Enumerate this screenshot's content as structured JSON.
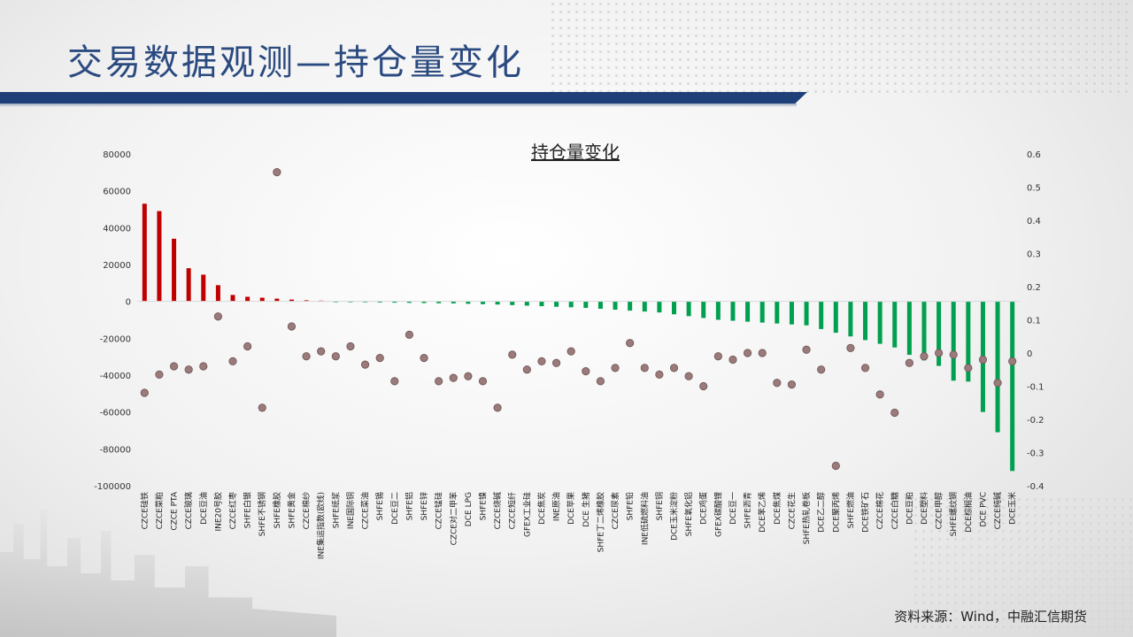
{
  "page": {
    "title": "交易数据观测—持仓量变化",
    "source": "资料来源：Wind，中融汇信期货"
  },
  "colors": {
    "title": "#2b4a80",
    "header_bar": "#1f3f78",
    "bar_positive": "#c00000",
    "bar_negative": "#00a050",
    "dot": "#9a7a7a"
  },
  "chart_data": {
    "type": "bar",
    "title": "持仓量变化",
    "xlabel": "",
    "ylabel": "",
    "ylim": [
      -100000,
      80000
    ],
    "y_ticks": [
      "80000",
      "60000",
      "40000",
      "20000",
      "0",
      "-20000",
      "-40000",
      "-60000",
      "-80000",
      "-100000"
    ],
    "y2lim": [
      -0.4,
      0.6
    ],
    "y2_ticks": [
      "0.6",
      "0.5",
      "0.4",
      "0.3",
      "0.2",
      "0.1",
      "0",
      "-0.1",
      "-0.2",
      "-0.3",
      "-0.4"
    ],
    "grid": false,
    "legend": "none",
    "categories": [
      "CZCE硅铁",
      "CZCE菜粕",
      "CZCE PTA",
      "CZCE玻璃",
      "DCE豆油",
      "INE20号胶",
      "CZCE红枣",
      "SHFE白银",
      "SHFE不锈钢",
      "SHFE橡胶",
      "SHFE黄金",
      "CZCE棉纱",
      "INE集运指数(欧线)",
      "SHFE纸浆",
      "INE国际铜",
      "CZCE菜油",
      "SHFE锡",
      "DCE豆二",
      "SHFE铝",
      "SHFE锌",
      "CZCE锰硅",
      "CZCE对二甲苯",
      "DCE LPG",
      "SHFE镍",
      "CZCE烧碱",
      "CZCE短纤",
      "GFEX工业硅",
      "DCE焦炭",
      "INE原油",
      "DCE苹果",
      "DCE 生猪",
      "SHFE丁二烯橡胶",
      "CZCE尿素",
      "SHFE铅",
      "INE低硫燃料油",
      "SHFE铜",
      "DCE玉米淀粉",
      "SHFE氧化铝",
      "DCE鸡蛋",
      "GFEX碳酸锂",
      "DCE豆一",
      "SHFE沥青",
      "DCE苯乙烯",
      "DCE焦煤",
      "CZCE花生",
      "SHFE热轧卷板",
      "DCE乙二醇",
      "DCE聚丙烯",
      "SHFE燃油",
      "DCE铁矿石",
      "CZCE棉花",
      "CZCE白糖",
      "DCE豆粕",
      "DCE塑料",
      "CZCE甲醇",
      "SHFE螺纹钢",
      "DCE棕榈油",
      "DCE PVC",
      "CZCE纯碱",
      "DCE玉米"
    ],
    "series": [
      {
        "kind": "bar",
        "axis": "left",
        "values": [
          53000,
          49000,
          34000,
          18000,
          14500,
          8800,
          3500,
          2500,
          2000,
          1500,
          1000,
          600,
          400,
          -300,
          -400,
          -500,
          -600,
          -700,
          -800,
          -900,
          -1000,
          -1100,
          -1300,
          -1500,
          -1700,
          -2000,
          -2300,
          -2600,
          -2900,
          -3200,
          -3500,
          -4000,
          -4500,
          -5000,
          -5500,
          -6000,
          -7000,
          -8000,
          -9000,
          -10000,
          -10500,
          -11000,
          -11500,
          -12000,
          -12500,
          -13000,
          -15000,
          -17000,
          -19000,
          -21000,
          -23000,
          -25000,
          -29000,
          -32000,
          -35000,
          -43000,
          -43500,
          -60000,
          -71000,
          -92000
        ]
      },
      {
        "kind": "dot",
        "axis": "right",
        "values": [
          -0.12,
          -0.065,
          -0.04,
          -0.05,
          -0.04,
          0.11,
          -0.025,
          0.02,
          -0.165,
          0.545,
          0.08,
          -0.01,
          0.005,
          -0.01,
          0.02,
          -0.035,
          -0.015,
          -0.085,
          0.055,
          -0.015,
          -0.085,
          -0.075,
          -0.07,
          -0.085,
          -0.165,
          -0.005,
          -0.05,
          -0.025,
          -0.03,
          0.005,
          -0.055,
          -0.085,
          -0.045,
          0.03,
          -0.045,
          -0.065,
          -0.045,
          -0.07,
          -0.1,
          -0.01,
          -0.02,
          0,
          0,
          -0.09,
          -0.095,
          0.01,
          -0.05,
          -0.34,
          0.015,
          -0.045,
          -0.125,
          -0.18,
          -0.03,
          -0.01,
          0,
          -0.005,
          -0.045,
          -0.02,
          -0.09,
          -0.025
        ]
      }
    ]
  }
}
